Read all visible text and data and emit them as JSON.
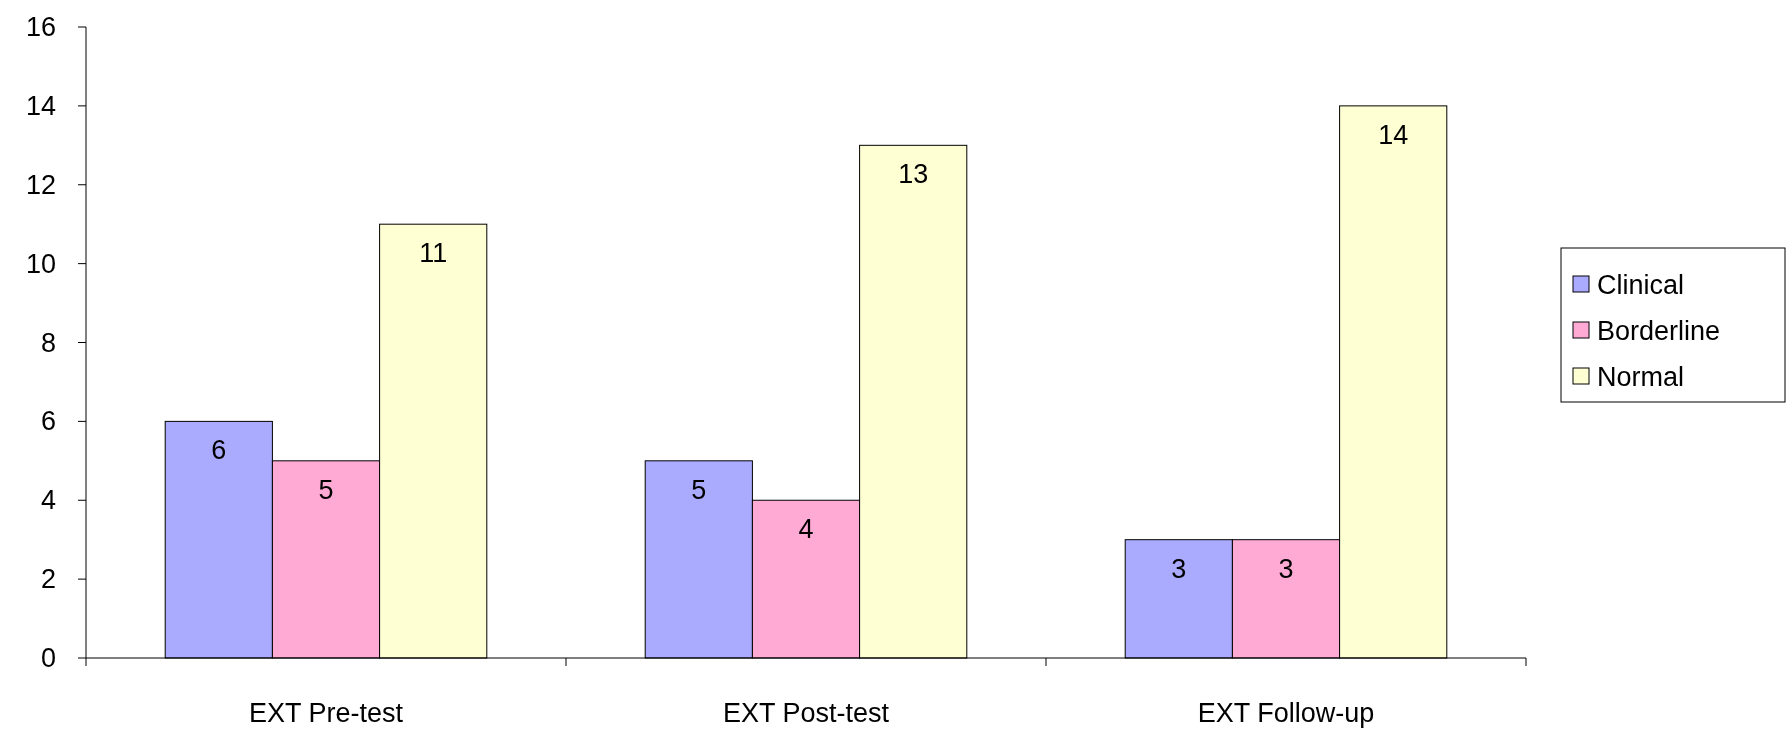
{
  "chart_data": {
    "type": "bar",
    "categories": [
      "EXT Pre-test",
      "EXT Post-test",
      "EXT Follow-up"
    ],
    "series": [
      {
        "name": "Clinical",
        "color": "#aaaaff",
        "values": [
          6,
          5,
          3
        ]
      },
      {
        "name": "Borderline",
        "color": "#ffaad4",
        "values": [
          5,
          4,
          3
        ]
      },
      {
        "name": "Normal",
        "color": "#ffffd4",
        "values": [
          11,
          13,
          14
        ]
      }
    ],
    "ylim": [
      0,
      16
    ],
    "yticks": [
      0,
      2,
      4,
      6,
      8,
      10,
      12,
      14,
      16
    ],
    "data_labels": true,
    "legend": "right",
    "grid": false
  }
}
